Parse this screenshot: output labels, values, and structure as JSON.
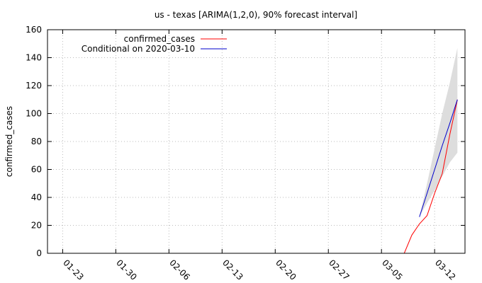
{
  "chart_data": {
    "type": "line",
    "title": "us - texas [ARIMA(1,2,0), 90% forecast interval]",
    "xlabel": "",
    "ylabel": "confirmed_cases",
    "x_ticks": [
      "01-23",
      "01-30",
      "02-06",
      "02-13",
      "02-20",
      "02-27",
      "03-05",
      "03-12"
    ],
    "x_range": [
      "2020-01-21",
      "2020-03-16"
    ],
    "ylim": [
      0,
      160
    ],
    "y_ticks": [
      0,
      20,
      40,
      60,
      80,
      100,
      120,
      140,
      160
    ],
    "grid": true,
    "legend_position": "top-left",
    "colors": {
      "actual": "#ff0000",
      "forecast": "#0000cc",
      "band": "#dddddd"
    },
    "series": [
      {
        "name": "confirmed_cases",
        "x": [
          "2020-02-29",
          "2020-03-01",
          "2020-03-02",
          "2020-03-03",
          "2020-03-04",
          "2020-03-05",
          "2020-03-06",
          "2020-03-07",
          "2020-03-08",
          "2020-03-09",
          "2020-03-10",
          "2020-03-11",
          "2020-03-12",
          "2020-03-13",
          "2020-03-14",
          "2020-03-15"
        ],
        "y": [
          0,
          0,
          0,
          0,
          0,
          0,
          0,
          0,
          0,
          13,
          21,
          27,
          43,
          57,
          85,
          110
        ]
      },
      {
        "name": "Conditional on 2020-03-10",
        "x": [
          "2020-03-10",
          "2020-03-11",
          "2020-03-12",
          "2020-03-13",
          "2020-03-14",
          "2020-03-15"
        ],
        "y": [
          26,
          43,
          60,
          77,
          93,
          110
        ],
        "lower": [
          26,
          36,
          45,
          55,
          65,
          72
        ],
        "upper": [
          26,
          50,
          75,
          100,
          122,
          147
        ]
      }
    ]
  }
}
